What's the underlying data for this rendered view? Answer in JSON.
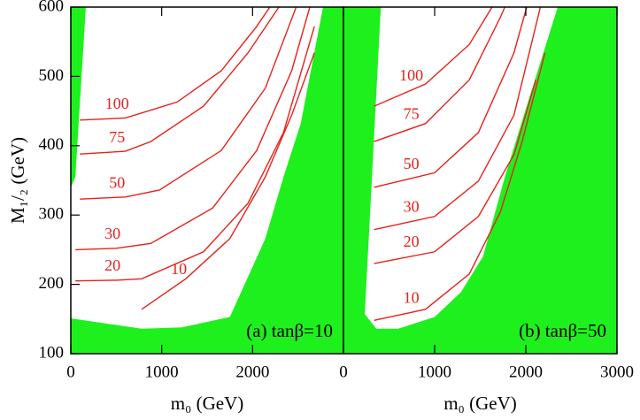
{
  "chart_data": [
    {
      "type": "line",
      "annotation": "(a) tanβ=10",
      "xlabel": "m₀ (GeV)",
      "ylabel": "M₁/₂ (GeV)",
      "xlim": [
        0,
        3000
      ],
      "ylim": [
        100,
        600
      ],
      "xticks": [
        0,
        1000,
        2000
      ],
      "yticks": [
        100,
        200,
        300,
        400,
        500,
        600
      ],
      "regions": [
        {
          "color": "#1ef01e",
          "x": [
            0,
            165,
            50,
            0
          ],
          "y": [
            600,
            600,
            355,
            340
          ]
        },
        {
          "color": "#1ef01e",
          "x": [
            0,
            0,
            780,
            1220,
            1750,
            2140,
            2340,
            2530,
            2775,
            3000,
            3000
          ],
          "y": [
            100,
            151,
            136,
            138,
            153,
            266,
            355,
            432,
            600,
            600,
            100
          ]
        }
      ],
      "series": [
        {
          "name": "100",
          "color": "#e8201a",
          "x": [
            100,
            600,
            1170,
            1655,
            2045,
            2190
          ],
          "values": [
            437,
            440,
            463,
            508,
            572,
            600
          ]
        },
        {
          "name": "75",
          "color": "#e8201a",
          "x": [
            100,
            600,
            880,
            1460,
            1950,
            2290
          ],
          "values": [
            388,
            392,
            406,
            457,
            534,
            600
          ]
        },
        {
          "name": "50",
          "color": "#e8201a",
          "x": [
            100,
            600,
            975,
            1655,
            2140,
            2480
          ],
          "values": [
            323,
            326,
            336,
            393,
            483,
            600
          ]
        },
        {
          "name": "30",
          "color": "#e8201a",
          "x": [
            50,
            500,
            880,
            1560,
            2045,
            2430,
            2630
          ],
          "values": [
            250,
            252,
            259,
            310,
            393,
            508,
            600
          ]
        },
        {
          "name": "20",
          "color": "#e8201a",
          "x": [
            50,
            500,
            780,
            1460,
            1950,
            2340,
            2680
          ],
          "values": [
            205,
            206,
            208,
            247,
            317,
            419,
            572
          ]
        },
        {
          "name": "10",
          "color": "#e8201a",
          "x": [
            780,
            1265,
            1750,
            2140,
            2430,
            2680
          ],
          "values": [
            164,
            208,
            266,
            355,
            444,
            534
          ]
        }
      ]
    },
    {
      "type": "line",
      "annotation": "(b) tanβ=50",
      "xlabel": "m₀ (GeV)",
      "xlim": [
        0,
        3000
      ],
      "ylim": [
        100,
        600
      ],
      "xticks": [
        0,
        1000,
        2000,
        3000
      ],
      "regions": [
        {
          "color": "#1ef01e",
          "x": [
            0,
            410,
            234,
            220,
            0
          ],
          "y": [
            600,
            600,
            157,
            100,
            100
          ]
        },
        {
          "color": "#1ef01e",
          "x": [
            0,
            234,
            360,
            600,
            1000,
            1290,
            1530,
            1770,
            2040,
            2350,
            3000,
            3000
          ],
          "y": [
            100,
            157,
            136,
            136,
            153,
            189,
            240,
            355,
            470,
            600,
            600,
            100
          ]
        }
      ],
      "series": [
        {
          "name": "100",
          "color": "#e8201a",
          "x": [
            336,
            900,
            1380,
            1630
          ],
          "values": [
            457,
            489,
            546,
            600
          ]
        },
        {
          "name": "75",
          "color": "#e8201a",
          "x": [
            336,
            900,
            1380,
            1720,
            1770
          ],
          "values": [
            406,
            432,
            495,
            585,
            600
          ]
        },
        {
          "name": "50",
          "color": "#e8201a",
          "x": [
            336,
            1000,
            1480,
            1870,
            2010
          ],
          "values": [
            340,
            361,
            419,
            534,
            600
          ]
        },
        {
          "name": "30",
          "color": "#e8201a",
          "x": [
            336,
            1000,
            1480,
            1870,
            2160
          ],
          "values": [
            279,
            298,
            349,
            444,
            600
          ]
        },
        {
          "name": "20",
          "color": "#e8201a",
          "x": [
            336,
            1000,
            1480,
            1870,
            2110
          ],
          "values": [
            230,
            247,
            298,
            387,
            495
          ]
        },
        {
          "name": "10",
          "color": "#e8201a",
          "x": [
            336,
            900,
            1380,
            1720,
            1960,
            2210
          ],
          "values": [
            148,
            164,
            215,
            304,
            406,
            534
          ]
        }
      ]
    }
  ]
}
